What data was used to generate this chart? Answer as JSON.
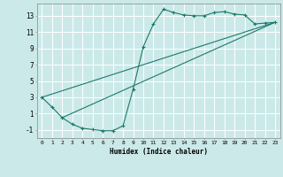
{
  "xlabel": "Humidex (Indice chaleur)",
  "ylabel": "",
  "bg_color": "#cce9e9",
  "grid_color": "#ffffff",
  "line_color": "#1a7a6a",
  "xlim": [
    -0.5,
    23.5
  ],
  "ylim": [
    -2.0,
    14.5
  ],
  "xticks": [
    0,
    1,
    2,
    3,
    4,
    5,
    6,
    7,
    8,
    9,
    10,
    11,
    12,
    13,
    14,
    15,
    16,
    17,
    18,
    19,
    20,
    21,
    22,
    23
  ],
  "yticks": [
    -1,
    1,
    3,
    5,
    7,
    9,
    11,
    13
  ],
  "curve1_x": [
    0,
    1,
    2,
    3,
    4,
    5,
    6,
    7,
    8,
    9,
    10,
    11,
    12,
    13,
    14,
    15,
    16,
    17,
    18,
    19,
    20,
    21,
    22,
    23
  ],
  "curve1_y": [
    3.0,
    1.8,
    0.5,
    -0.3,
    -0.8,
    -0.95,
    -1.1,
    -1.1,
    -0.5,
    4.0,
    9.2,
    12.0,
    13.8,
    13.4,
    13.1,
    13.0,
    13.0,
    13.4,
    13.5,
    13.2,
    13.1,
    12.0,
    12.1,
    12.2
  ],
  "line2_x": [
    0,
    23
  ],
  "line2_y": [
    3.0,
    12.2
  ],
  "line3_x": [
    2,
    23
  ],
  "line3_y": [
    0.5,
    12.2
  ]
}
